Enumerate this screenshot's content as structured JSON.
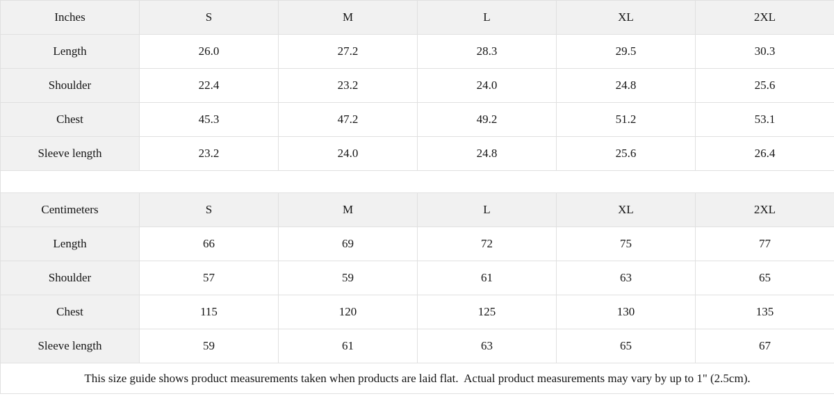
{
  "colors": {
    "shaded_bg": "#f1f1f1",
    "border": "#e0e0e0",
    "text": "#141414"
  },
  "size_guide": {
    "sections": [
      {
        "unit": "Inches",
        "sizes": [
          "S",
          "M",
          "L",
          "XL",
          "2XL"
        ],
        "rows": [
          {
            "label": "Length",
            "values": [
              "26.0",
              "27.2",
              "28.3",
              "29.5",
              "30.3"
            ]
          },
          {
            "label": "Shoulder",
            "values": [
              "22.4",
              "23.2",
              "24.0",
              "24.8",
              "25.6"
            ]
          },
          {
            "label": "Chest",
            "values": [
              "45.3",
              "47.2",
              "49.2",
              "51.2",
              "53.1"
            ]
          },
          {
            "label": "Sleeve length",
            "values": [
              "23.2",
              "24.0",
              "24.8",
              "25.6",
              "26.4"
            ]
          }
        ]
      },
      {
        "unit": "Centimeters",
        "sizes": [
          "S",
          "M",
          "L",
          "XL",
          "2XL"
        ],
        "rows": [
          {
            "label": "Length",
            "values": [
              "66",
              "69",
              "72",
              "75",
              "77"
            ]
          },
          {
            "label": "Shoulder",
            "values": [
              "57",
              "59",
              "61",
              "63",
              "65"
            ]
          },
          {
            "label": "Chest",
            "values": [
              "115",
              "120",
              "125",
              "130",
              "135"
            ]
          },
          {
            "label": "Sleeve length",
            "values": [
              "59",
              "61",
              "63",
              "65",
              "67"
            ]
          }
        ]
      }
    ],
    "footnote": "This size guide shows product measurements taken when products are laid flat.  Actual product measurements may vary by up to 1\" (2.5cm)."
  }
}
